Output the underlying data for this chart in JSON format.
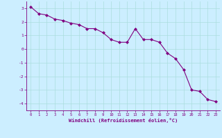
{
  "x": [
    0,
    1,
    2,
    3,
    4,
    5,
    6,
    7,
    8,
    9,
    10,
    11,
    12,
    13,
    14,
    15,
    16,
    17,
    18,
    19,
    20,
    21,
    22,
    23
  ],
  "y": [
    3.1,
    2.6,
    2.5,
    2.2,
    2.1,
    1.9,
    1.8,
    1.5,
    1.5,
    1.2,
    0.7,
    0.5,
    0.5,
    1.5,
    0.7,
    0.7,
    0.5,
    -0.3,
    -0.7,
    -1.5,
    -3.0,
    -3.1,
    -3.7,
    -3.85
  ],
  "line_color": "#800080",
  "marker": "D",
  "marker_size": 2.0,
  "bg_color": "#cceeff",
  "grid_color": "#aadddd",
  "xlabel": "Windchill (Refroidissement éolien,°C)",
  "xlabel_color": "#800080",
  "tick_color": "#800080",
  "label_color": "#800080",
  "ylim": [
    -4.5,
    3.5
  ],
  "xlim": [
    -0.5,
    23.5
  ],
  "yticks": [
    -4,
    -3,
    -2,
    -1,
    0,
    1,
    2,
    3
  ],
  "xticks": [
    0,
    1,
    2,
    3,
    4,
    5,
    6,
    7,
    8,
    9,
    10,
    11,
    12,
    13,
    14,
    15,
    16,
    17,
    18,
    19,
    20,
    21,
    22,
    23
  ],
  "tick_fontsize": 4.0,
  "xlabel_fontsize": 5.0,
  "linewidth": 0.8
}
